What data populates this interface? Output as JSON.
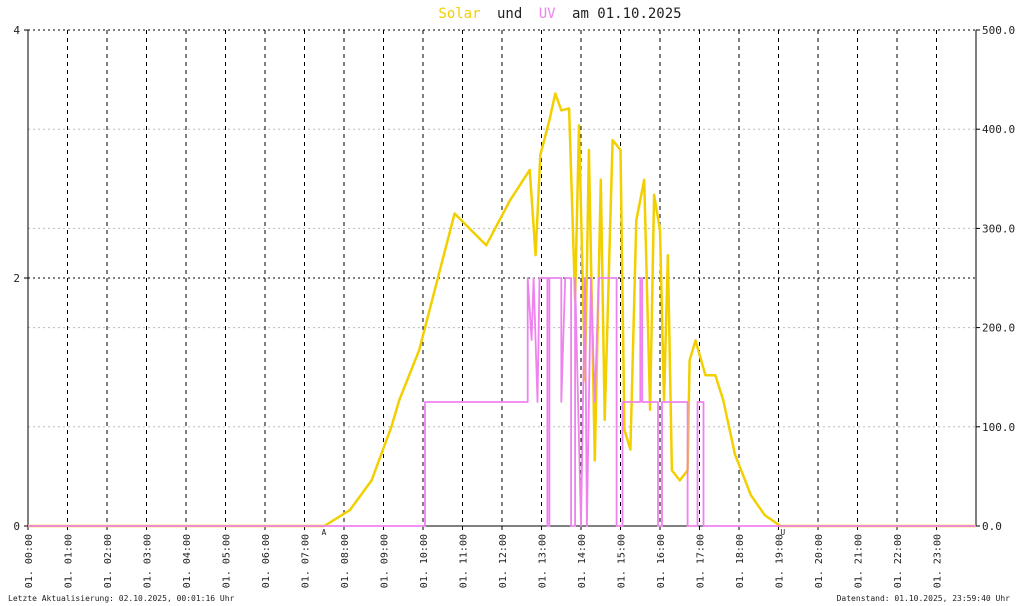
{
  "chart_data": {
    "type": "line",
    "title_parts": [
      "Solar",
      "und",
      "UV",
      "am 01.10.2025"
    ],
    "xlim": [
      0,
      24
    ],
    "xticks": [
      {
        "value": 0,
        "label": "01. 00:00"
      },
      {
        "value": 1,
        "label": "01. 01:00"
      },
      {
        "value": 2,
        "label": "01. 02:00"
      },
      {
        "value": 3,
        "label": "01. 03:00"
      },
      {
        "value": 4,
        "label": "01. 04:00"
      },
      {
        "value": 5,
        "label": "01. 05:00"
      },
      {
        "value": 6,
        "label": "01. 06:00"
      },
      {
        "value": 7,
        "label": "01. 07:00"
      },
      {
        "value": 8,
        "label": "01. 08:00"
      },
      {
        "value": 9,
        "label": "01. 09:00"
      },
      {
        "value": 10,
        "label": "01. 10:00"
      },
      {
        "value": 11,
        "label": "01. 11:00"
      },
      {
        "value": 12,
        "label": "01. 12:00"
      },
      {
        "value": 13,
        "label": "01. 13:00"
      },
      {
        "value": 14,
        "label": "01. 14:00"
      },
      {
        "value": 15,
        "label": "01. 15:00"
      },
      {
        "value": 16,
        "label": "01. 16:00"
      },
      {
        "value": 17,
        "label": "01. 17:00"
      },
      {
        "value": 18,
        "label": "01. 18:00"
      },
      {
        "value": 19,
        "label": "01. 19:00"
      },
      {
        "value": 20,
        "label": "01. 20:00"
      },
      {
        "value": 21,
        "label": "01. 21:00"
      },
      {
        "value": 22,
        "label": "01. 22:00"
      },
      {
        "value": 23,
        "label": "01. 23:00"
      }
    ],
    "ylim": [
      0,
      4
    ],
    "yticks": [
      0,
      2,
      4
    ],
    "y2lim": [
      0,
      500
    ],
    "y2ticks": [
      {
        "value": 0,
        "label": "0.0"
      },
      {
        "value": 100,
        "label": "100.0"
      },
      {
        "value": 200,
        "label": "200.0"
      },
      {
        "value": 300,
        "label": "300.0"
      },
      {
        "value": 400,
        "label": "400.0"
      },
      {
        "value": 500,
        "label": "500.0"
      }
    ],
    "grid": true,
    "series": [
      {
        "name": "Solar",
        "color": "#f2d000",
        "axis": "y2",
        "x": [
          0,
          7.5,
          8.15,
          8.7,
          9.2,
          9.4,
          9.9,
          10.8,
          11.6,
          12.2,
          12.7,
          12.85,
          12.97,
          13.2,
          13.35,
          13.5,
          13.7,
          13.85,
          13.95,
          14.1,
          14.2,
          14.35,
          14.5,
          14.6,
          14.8,
          15.0,
          15.1,
          15.25,
          15.4,
          15.6,
          15.75,
          15.85,
          16.0,
          16.1,
          16.2,
          16.3,
          16.5,
          16.7,
          16.75,
          16.9,
          17.15,
          17.4,
          17.6,
          17.9,
          18.3,
          18.65,
          19.05,
          24
        ],
        "values": [
          0,
          0,
          16,
          46,
          100,
          127,
          177,
          315,
          283,
          328,
          359,
          273,
          374,
          409,
          436,
          419,
          421,
          228,
          404,
          147,
          379,
          66,
          349,
          107,
          389,
          379,
          97,
          77,
          308,
          349,
          117,
          334,
          298,
          127,
          273,
          56,
          46,
          56,
          167,
          187,
          152,
          152,
          127,
          72,
          31,
          11,
          0,
          0
        ]
      },
      {
        "name": "UV",
        "color": "#ee82ee",
        "axis": "y",
        "x": [
          0,
          10.05,
          10.05,
          12.65,
          12.65,
          12.75,
          12.8,
          12.9,
          12.95,
          13.15,
          13.15,
          13.2,
          13.2,
          13.5,
          13.5,
          13.6,
          13.75,
          13.75,
          13.85,
          13.85,
          14.0,
          14.1,
          14.15,
          14.25,
          14.35,
          14.45,
          14.9,
          14.9,
          15.05,
          15.05,
          15.5,
          15.5,
          15.55,
          15.55,
          15.95,
          15.95,
          16.05,
          16.05,
          16.7,
          16.7,
          16.95,
          16.95,
          17.1,
          17.1,
          24
        ],
        "values": [
          0,
          0,
          1,
          1,
          2,
          1.5,
          2,
          1,
          2,
          2,
          0,
          0,
          2,
          2,
          1,
          2,
          2,
          0,
          0,
          2,
          0,
          2,
          0,
          2,
          1,
          2,
          2,
          0,
          0,
          1,
          1,
          2,
          2,
          1,
          1,
          0,
          0,
          1,
          1,
          0,
          0,
          1,
          1,
          0,
          0
        ]
      }
    ],
    "markers": [
      {
        "x": 7.49,
        "label": "A"
      },
      {
        "x": 19.11,
        "label": "U"
      }
    ],
    "footer_left": "Letzte Aktualisierung: 02.10.2025, 00:01:16 Uhr",
    "footer_right": "Datenstand: 01.10.2025, 23:59:40 Uhr"
  }
}
